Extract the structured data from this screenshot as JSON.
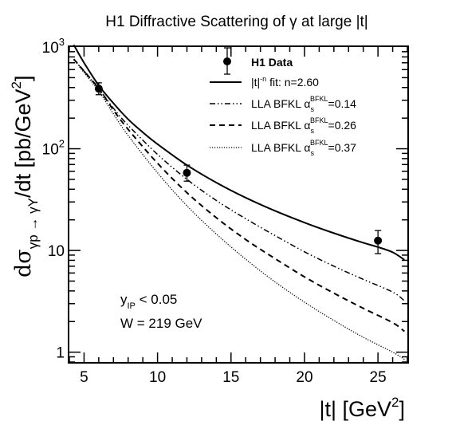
{
  "chart_data": {
    "type": "line",
    "title": "H1 Diffractive Scattering of γ at large |t|",
    "xlabel": {
      "main": "|t| [GeV",
      "sup": "2",
      "end": "]"
    },
    "ylabel": {
      "pre": "dσ",
      "sub": "γp → γY",
      "mid": "/dt [pb/GeV",
      "sup": "2",
      "end": "]"
    },
    "x_scale": "linear",
    "y_scale": "log",
    "xlim": [
      4,
      27
    ],
    "ylim": [
      0.8,
      1000
    ],
    "x_ticks": [
      5,
      10,
      15,
      20,
      25
    ],
    "x_tick_labels": [
      "5",
      "10",
      "15",
      "20",
      "25"
    ],
    "y_major_ticks": [
      1,
      10,
      100,
      1000
    ],
    "y_tick_labels": [
      {
        "base": "1",
        "exp": ""
      },
      {
        "base": "10",
        "exp": ""
      },
      {
        "base": "10",
        "exp": "2"
      },
      {
        "base": "10",
        "exp": "3"
      }
    ],
    "grid": false,
    "legend_position": "top-right",
    "legend": {
      "data": "H1 Data",
      "fit": {
        "pre": "|t|",
        "sup": "-n",
        "post": " fit: n=2.60"
      },
      "bfkl": [
        {
          "pre": "LLA BFKL α",
          "sub": "s",
          "sup": "BFKL",
          "post": "=0.14"
        },
        {
          "pre": "LLA BFKL α",
          "sub": "s",
          "sup": "BFKL",
          "post": "=0.26"
        },
        {
          "pre": "LLA BFKL α",
          "sub": "s",
          "sup": "BFKL",
          "post": "=0.37"
        }
      ]
    },
    "annotations": {
      "cut": {
        "pre": "y",
        "sub": "IP",
        "post": " < 0.05"
      },
      "energy": "W = 219 GeV"
    },
    "data_points": [
      {
        "x": 6,
        "y": 390,
        "err_low": 50,
        "err_high": 55
      },
      {
        "x": 12,
        "y": 58,
        "err_low": 10,
        "err_high": 11
      },
      {
        "x": 25,
        "y": 12.5,
        "err_low": 3.2,
        "err_high": 3.2
      }
    ],
    "series": [
      {
        "style": "solid",
        "x": [
          4.3,
          5,
          6,
          7,
          8,
          9,
          10,
          12,
          14,
          16,
          18,
          20,
          22,
          24,
          25,
          26,
          26.8
        ],
        "y": [
          1050,
          700,
          420,
          280,
          195,
          145,
          111,
          69,
          46.5,
          33,
          24.5,
          18.8,
          14.8,
          11.9,
          10.8,
          9.6,
          8.1
        ]
      },
      {
        "style": "dash-dot",
        "x": [
          4.3,
          5,
          6,
          7,
          8,
          10,
          12,
          14,
          16,
          18,
          20,
          22,
          24,
          26,
          26.8
        ],
        "y": [
          760,
          580,
          390,
          250,
          170,
          88,
          50,
          31,
          20.5,
          14,
          9.7,
          7,
          5.2,
          3.9,
          3.2
        ]
      },
      {
        "style": "dashed",
        "x": [
          4.3,
          5,
          6,
          7,
          8,
          10,
          12,
          14,
          16,
          18,
          20,
          22,
          24,
          26,
          26.8
        ],
        "y": [
          760,
          580,
          390,
          240,
          155,
          72,
          37,
          21,
          12.8,
          8.3,
          5.5,
          3.8,
          2.7,
          1.95,
          1.6
        ]
      },
      {
        "style": "dotted",
        "x": [
          4.3,
          5,
          6,
          7,
          8,
          10,
          12,
          14,
          16,
          18,
          20,
          22,
          24,
          26,
          26.8
        ],
        "y": [
          760,
          560,
          370,
          220,
          135,
          58,
          27.5,
          14.5,
          8.2,
          4.9,
          3.1,
          2.05,
          1.4,
          1.0,
          0.85
        ]
      }
    ]
  }
}
